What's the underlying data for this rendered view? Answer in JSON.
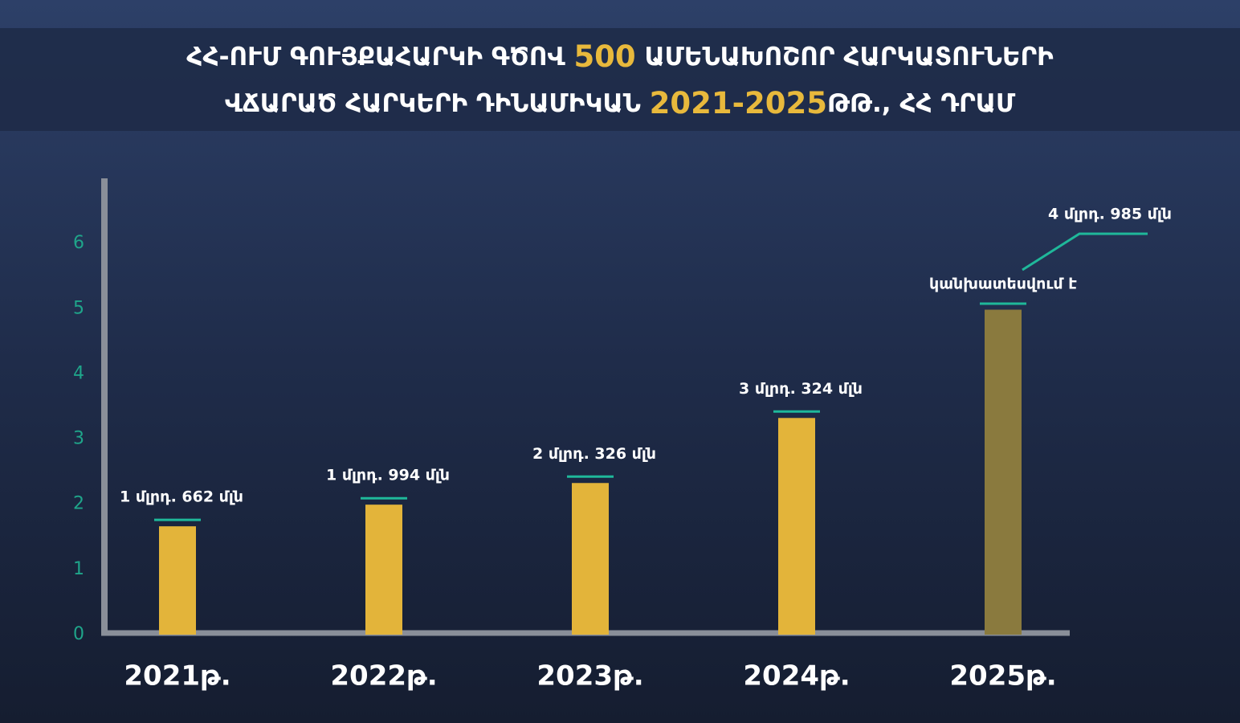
{
  "chart_data": {
    "type": "bar",
    "title_parts": [
      "ՀՀ-ՈՒՄ ԳՈՒՅՔԱՀԱՐԿԻ ԳԾՈՎ ",
      "500",
      " ԱՄԵՆԱԽՈՇՈՐ ՀԱՐԿԱՏՈՒՆԵՐԻ",
      "ՎՃԱՐԱԾ ՀԱՐԿԵՐԻ ԴԻՆԱՄԻԿԱՆ ",
      "2021-2025",
      "ԹԹ., ՀՀ ԴՐԱՄ"
    ],
    "categories": [
      "2021թ.",
      "2022թ.",
      "2023թ.",
      "2024թ.",
      "2025թ."
    ],
    "values": [
      1.662,
      1.994,
      2.326,
      3.324,
      4.985
    ],
    "value_labels": [
      "1 մլրդ. 662 մլն",
      "1 մլրդ. 994 մլն",
      "2 մլրդ. 326 մլն",
      "3 մլրդ. 324 մլն",
      "4 մլրդ. 985 մլն"
    ],
    "colors": [
      "#e3b43a",
      "#e3b43a",
      "#e3b43a",
      "#e3b43a",
      "#8a7a3e"
    ],
    "annotation": "կանխատեսվում է",
    "ylim": [
      0,
      7
    ],
    "yticks": [
      0,
      1,
      2,
      3,
      4,
      5,
      6
    ],
    "grid": false
  }
}
